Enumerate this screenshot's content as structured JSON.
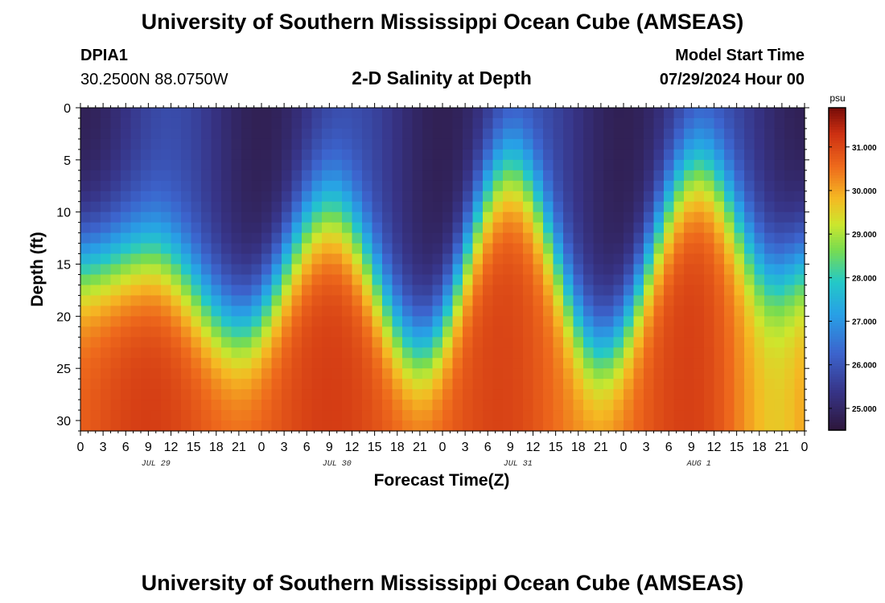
{
  "header": {
    "title": "University of Southern Mississippi Ocean Cube (AMSEAS)",
    "station": "DPIA1",
    "coords": "30.2500N  88.0750W",
    "plot_title": "2-D Salinity at Depth",
    "model_label": "Model Start Time",
    "model_time": "07/29/2024 Hour 00"
  },
  "footer": {
    "title": "University of Southern Mississippi Ocean Cube (AMSEAS)"
  },
  "chart_data": {
    "type": "heatmap",
    "title": "2-D Salinity at Depth",
    "xlabel": "Forecast Time(Z)",
    "ylabel": "Depth (ft)",
    "xlim": [
      0,
      96
    ],
    "ylim": [
      31,
      0
    ],
    "x_tick_values": [
      0,
      3,
      6,
      9,
      12,
      15,
      18,
      21,
      24,
      27,
      30,
      33,
      36,
      39,
      42,
      45,
      48,
      51,
      54,
      57,
      60,
      63,
      66,
      69,
      72,
      75,
      78,
      81,
      84,
      87,
      90,
      93,
      96
    ],
    "x_tick_labels": [
      "0",
      "3",
      "6",
      "9",
      "12",
      "15",
      "18",
      "21",
      "0",
      "3",
      "6",
      "9",
      "12",
      "15",
      "18",
      "21",
      "0",
      "3",
      "6",
      "9",
      "12",
      "15",
      "18",
      "21",
      "0",
      "3",
      "6",
      "9",
      "12",
      "15",
      "18",
      "21",
      "0"
    ],
    "date_labels": [
      {
        "hour": 10,
        "label": "JUL 29"
      },
      {
        "hour": 34,
        "label": "JUL 30"
      },
      {
        "hour": 58,
        "label": "JUL 31"
      },
      {
        "hour": 82,
        "label": "AUG 1"
      }
    ],
    "y_tick_values": [
      0,
      5,
      10,
      15,
      20,
      25,
      30
    ],
    "y_tick_labels": [
      "0",
      "5",
      "10",
      "15",
      "20",
      "25",
      "30"
    ],
    "colorbar": {
      "unit": "psu",
      "range": [
        24.5,
        31.9
      ],
      "tick_values": [
        25,
        26,
        27,
        28,
        29,
        30,
        31
      ],
      "tick_labels": [
        "25.000",
        "26.000",
        "27.000",
        "28.000",
        "29.000",
        "30.000",
        "31.000"
      ]
    },
    "halocline_trough_hours": [
      21,
      45,
      69,
      92
    ],
    "halocline_crest_hours": [
      8,
      33,
      57,
      82
    ],
    "halocline_depth_ft": {
      "Jul 29 09Z": 14,
      "Jul 29 21Z": 21,
      "Jul 30 09Z": 10,
      "Jul 30 21Z": 23,
      "Jul 31 09Z": 6,
      "Jul 31 21Z": 23,
      "Aug 1 09Z": 6
    },
    "grid": false
  }
}
